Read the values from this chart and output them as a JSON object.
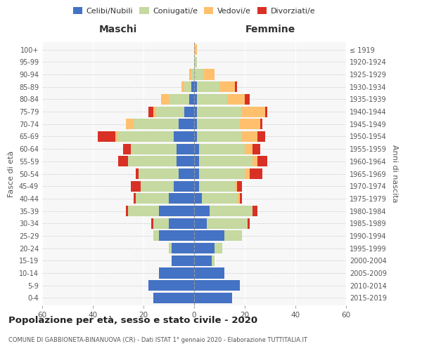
{
  "age_groups": [
    "0-4",
    "5-9",
    "10-14",
    "15-19",
    "20-24",
    "25-29",
    "30-34",
    "35-39",
    "40-44",
    "45-49",
    "50-54",
    "55-59",
    "60-64",
    "65-69",
    "70-74",
    "75-79",
    "80-84",
    "85-89",
    "90-94",
    "95-99",
    "100+"
  ],
  "birth_years": [
    "2015-2019",
    "2010-2014",
    "2005-2009",
    "2000-2004",
    "1995-1999",
    "1990-1994",
    "1985-1989",
    "1980-1984",
    "1975-1979",
    "1970-1974",
    "1965-1969",
    "1960-1964",
    "1955-1959",
    "1950-1954",
    "1945-1949",
    "1940-1944",
    "1935-1939",
    "1930-1934",
    "1925-1929",
    "1920-1924",
    "≤ 1919"
  ],
  "males": {
    "celibe": [
      16,
      18,
      14,
      9,
      9,
      14,
      10,
      14,
      10,
      8,
      6,
      7,
      7,
      8,
      6,
      4,
      2,
      1,
      0,
      0,
      0
    ],
    "coniugato": [
      0,
      0,
      0,
      0,
      1,
      2,
      6,
      12,
      13,
      13,
      16,
      19,
      18,
      22,
      18,
      11,
      8,
      3,
      1,
      0,
      0
    ],
    "vedovo": [
      0,
      0,
      0,
      0,
      0,
      0,
      0,
      0,
      0,
      0,
      0,
      0,
      0,
      1,
      3,
      1,
      3,
      1,
      1,
      0,
      0
    ],
    "divorziato": [
      0,
      0,
      0,
      0,
      0,
      0,
      1,
      1,
      1,
      4,
      1,
      4,
      3,
      7,
      0,
      2,
      0,
      0,
      0,
      0,
      0
    ]
  },
  "females": {
    "nubile": [
      15,
      18,
      12,
      7,
      8,
      12,
      5,
      6,
      3,
      2,
      2,
      2,
      2,
      1,
      1,
      1,
      1,
      1,
      0,
      0,
      0
    ],
    "coniugata": [
      0,
      0,
      0,
      1,
      3,
      7,
      16,
      17,
      14,
      14,
      18,
      21,
      18,
      18,
      17,
      18,
      12,
      9,
      4,
      1,
      0
    ],
    "vedova": [
      0,
      0,
      0,
      0,
      0,
      0,
      0,
      0,
      1,
      1,
      2,
      2,
      3,
      6,
      8,
      9,
      7,
      6,
      4,
      0,
      1
    ],
    "divorziata": [
      0,
      0,
      0,
      0,
      0,
      0,
      1,
      2,
      1,
      2,
      5,
      4,
      3,
      3,
      1,
      1,
      2,
      1,
      0,
      0,
      0
    ]
  },
  "colors": {
    "celibe": "#4472c4",
    "coniugato": "#c5d9a0",
    "vedovo": "#ffc06e",
    "divorziato": "#d93025"
  },
  "title": "Popolazione per età, sesso e stato civile - 2020",
  "subtitle": "COMUNE DI GABBIONETA-BINANUOVA (CR) - Dati ISTAT 1° gennaio 2020 - Elaborazione TUTTITALIA.IT",
  "xlabel_left": "Maschi",
  "xlabel_right": "Femmine",
  "ylabel_left": "Fasce di età",
  "ylabel_right": "Anni di nascita",
  "legend_labels": [
    "Celibi/Nubili",
    "Coniugati/e",
    "Vedovi/e",
    "Divorziati/e"
  ],
  "xlim": 60,
  "background_color": "#ffffff",
  "plot_bg": "#f7f7f7"
}
